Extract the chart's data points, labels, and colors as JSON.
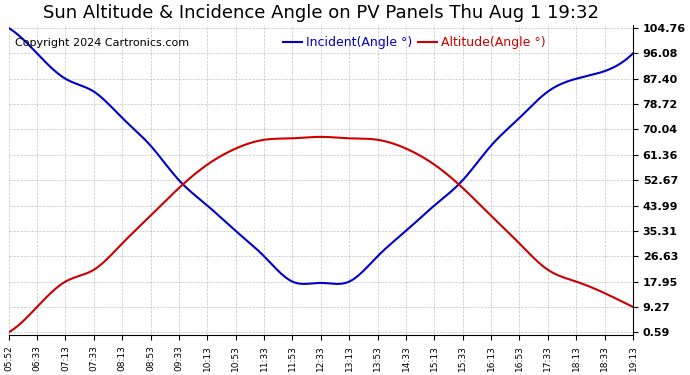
{
  "title": "Sun Altitude & Incidence Angle on PV Panels Thu Aug 1 19:32",
  "copyright": "Copyright 2024 Cartronics.com",
  "legend_incident": "Incident(Angle °)",
  "legend_altitude": "Altitude(Angle °)",
  "incident_color": "#0000cc",
  "altitude_color": "#cc0000",
  "background_color": "#ffffff",
  "grid_color": "#aaaaaa",
  "y_ticks": [
    0.59,
    9.27,
    17.95,
    26.63,
    35.31,
    43.99,
    52.67,
    61.36,
    70.04,
    78.72,
    87.4,
    96.08,
    104.76
  ],
  "x_labels": [
    "05:52",
    "06:33",
    "07:13",
    "07:33",
    "08:13",
    "08:53",
    "09:33",
    "10:13",
    "10:53",
    "11:33",
    "11:53",
    "12:33",
    "13:13",
    "13:53",
    "14:33",
    "15:13",
    "15:33",
    "16:13",
    "16:53",
    "17:33",
    "18:13",
    "18:33",
    "19:13"
  ],
  "incident_values": [
    104.76,
    96.08,
    87.4,
    83.0,
    74.0,
    64.5,
    52.67,
    43.99,
    35.31,
    26.63,
    17.95,
    17.5,
    17.95,
    26.63,
    35.31,
    43.99,
    52.67,
    64.5,
    74.0,
    83.0,
    87.4,
    90.0,
    96.08
  ],
  "altitude_values": [
    0.59,
    9.27,
    17.95,
    22.0,
    31.0,
    40.5,
    50.0,
    58.0,
    63.5,
    66.5,
    67.0,
    67.5,
    67.0,
    66.5,
    63.5,
    58.0,
    50.0,
    40.5,
    31.0,
    22.0,
    17.95,
    14.0,
    9.27
  ],
  "title_fontsize": 13,
  "copyright_fontsize": 8,
  "legend_fontsize": 9,
  "ytick_fontsize": 8,
  "xtick_fontsize": 6.5
}
